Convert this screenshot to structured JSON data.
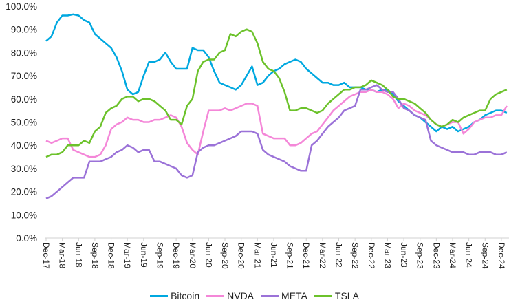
{
  "chart_data": {
    "type": "line",
    "title": "",
    "xlabel": "",
    "ylabel": "",
    "ylim": [
      0,
      100
    ],
    "y_ticks": [
      "0.0%",
      "10.0%",
      "20.0%",
      "30.0%",
      "40.0%",
      "50.0%",
      "60.0%",
      "70.0%",
      "80.0%",
      "90.0%",
      "100.0%"
    ],
    "x_ticks": [
      "Dec-17",
      "Mar-18",
      "Jun-18",
      "Sep-18",
      "Dec-18",
      "Mar-19",
      "Jun-19",
      "Sep-19",
      "Dec-19",
      "Mar-20",
      "Jun-20",
      "Sep-20",
      "Dec-20",
      "Mar-21",
      "Jun-21",
      "Sep-21",
      "Dec-21",
      "Mar-22",
      "Jun-22",
      "Sep-22",
      "Dec-22",
      "Mar-23",
      "Jun-23",
      "Sep-23",
      "Dec-23",
      "Mar-24",
      "Jun-24",
      "Sep-24",
      "Dec-24"
    ],
    "x_start": "Dec-17",
    "x_frequency": "monthly",
    "grid": false,
    "legend_position": "bottom",
    "series": [
      {
        "name": "Bitcoin",
        "color": "#00a8e0",
        "values": [
          85,
          87,
          93,
          96,
          96,
          96.5,
          96,
          94,
          93,
          88,
          86,
          84,
          82,
          78,
          72,
          64,
          62,
          63,
          70,
          76,
          76,
          77,
          80,
          76,
          73,
          73,
          73,
          82,
          81,
          81,
          78,
          72,
          67,
          66,
          65,
          64,
          66,
          70,
          74,
          66,
          67,
          70,
          72,
          73,
          75,
          76,
          77,
          76,
          73,
          71,
          69,
          67,
          67,
          66,
          66,
          67,
          65,
          65,
          65,
          64,
          64,
          63,
          64,
          64,
          62,
          59,
          57,
          55,
          53,
          52,
          50,
          48,
          46,
          48,
          47,
          48,
          46,
          47,
          48,
          50,
          51,
          53,
          54,
          55,
          55,
          54
        ]
      },
      {
        "name": "NVDA",
        "color": "#f487d8",
        "values": [
          42,
          41,
          42,
          43,
          43,
          38,
          37,
          36,
          35,
          35,
          36,
          40,
          47,
          49,
          50,
          52,
          51,
          51,
          50,
          50,
          51,
          51,
          52,
          53,
          52,
          48,
          41,
          38,
          36,
          46,
          55,
          55,
          55,
          56,
          55,
          56,
          57,
          58,
          58,
          57,
          45,
          44,
          43,
          43,
          43,
          40,
          40,
          41,
          43,
          45,
          46,
          49,
          52,
          55,
          57,
          59,
          61,
          62,
          63,
          63,
          64,
          63,
          63,
          62,
          60,
          56,
          58,
          57,
          55,
          54,
          53,
          51,
          49,
          48,
          49,
          50,
          50,
          45,
          47,
          50,
          51,
          52,
          52,
          53,
          53,
          57
        ]
      },
      {
        "name": "META",
        "color": "#9b72d8",
        "values": [
          17,
          18,
          20,
          22,
          24,
          26,
          26,
          26,
          33,
          33,
          33,
          34,
          35,
          37,
          38,
          40,
          39,
          37,
          38,
          38,
          33,
          33,
          32,
          31,
          30,
          27,
          26,
          27,
          37,
          39,
          40,
          40,
          41,
          42,
          43,
          44,
          46,
          46,
          46,
          45,
          38,
          36,
          35,
          34,
          33,
          31,
          30,
          29,
          29,
          40,
          42,
          45,
          48,
          50,
          52,
          55,
          56,
          57,
          64,
          64,
          65,
          66,
          64,
          63,
          63,
          60,
          56,
          55,
          53,
          52,
          51,
          42,
          40,
          39,
          38,
          37,
          37,
          37,
          36,
          36,
          37,
          37,
          37,
          36,
          36,
          37
        ]
      },
      {
        "name": "TSLA",
        "color": "#6cc22b",
        "values": [
          35,
          36,
          36,
          37,
          40,
          40,
          40,
          42,
          41,
          46,
          48,
          54,
          56,
          57,
          60,
          61,
          61,
          59,
          60,
          60,
          59,
          57,
          55,
          51,
          51,
          49,
          57,
          60,
          72,
          76,
          77,
          77,
          80,
          81,
          88,
          87,
          89,
          90,
          89,
          84,
          76,
          73,
          72,
          69,
          63,
          55,
          55,
          56,
          56,
          55,
          54,
          55,
          58,
          60,
          62,
          64,
          64,
          65,
          65,
          66,
          68,
          67,
          66,
          64,
          61,
          60,
          60,
          59,
          58,
          56,
          54,
          51,
          49,
          48,
          49,
          51,
          50,
          52,
          53,
          54,
          55,
          55,
          60,
          62,
          63,
          64
        ]
      }
    ]
  }
}
